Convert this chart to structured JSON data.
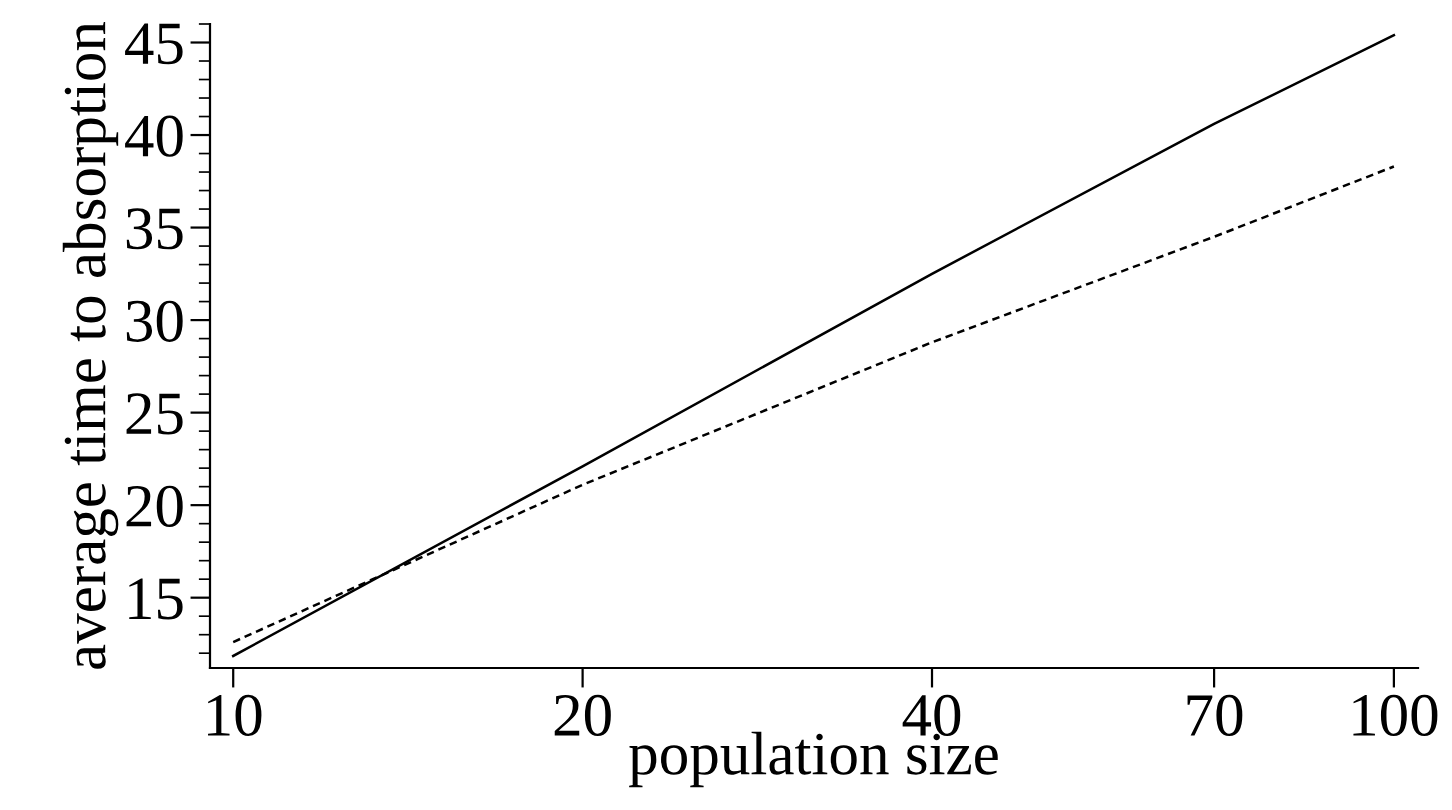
{
  "chart_data": {
    "type": "line",
    "xlabel": "population size",
    "ylabel": "average time to absorption",
    "log": "x",
    "x": [
      10,
      20,
      40,
      70,
      100
    ],
    "series": [
      {
        "color": "#000000",
        "line_style": "solid",
        "values": [
          11.85,
          22.1,
          32.5,
          40.6,
          45.4
        ]
      },
      {
        "color": "#000000",
        "line_style": "dashed",
        "values": [
          12.6,
          21.1,
          28.8,
          34.5,
          38.3
        ]
      }
    ],
    "xlim": [
      9.55,
      104.9
    ],
    "xticks": [
      10,
      20,
      40,
      70,
      100
    ],
    "ylim": [
      11.2,
      46.0
    ],
    "yticks": [
      15,
      20,
      25,
      30,
      35,
      40,
      45
    ],
    "grid": false,
    "legend": false,
    "marker": "none"
  }
}
